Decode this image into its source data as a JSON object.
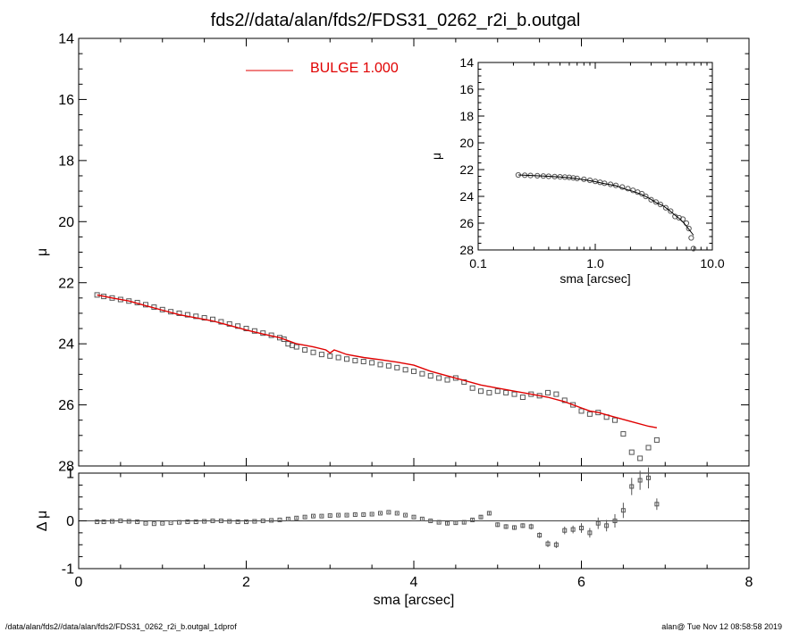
{
  "title": "fds2//data/alan/fds2/FDS31_0262_r2i_b.outgal",
  "footer": {
    "left": "/data/alan/fds2//data/alan/fds2/FDS31_0262_r2i_b.outgal_1dprof",
    "right": "alan@  Tue Nov 12 08:58:58 2019"
  },
  "chart_data": [
    {
      "type": "scatter",
      "panel": "main",
      "xlabel": "sma [arcsec]",
      "ylabel": "μ",
      "xlim": [
        0,
        8
      ],
      "ylim": [
        28,
        14
      ],
      "y_reversed": true,
      "xticks": [
        0,
        2,
        4,
        6,
        8
      ],
      "yticks": [
        14,
        16,
        18,
        20,
        22,
        24,
        26,
        28
      ],
      "legend": {
        "label": "BULGE  1.000",
        "color": "#e00000",
        "placement": "top-center"
      },
      "series": [
        {
          "kind": "points",
          "marker": "square",
          "color": "#555555",
          "x": [
            0.22,
            0.3,
            0.4,
            0.5,
            0.6,
            0.7,
            0.8,
            0.9,
            1.0,
            1.1,
            1.2,
            1.3,
            1.4,
            1.5,
            1.6,
            1.7,
            1.8,
            1.9,
            2.0,
            2.1,
            2.2,
            2.3,
            2.4,
            2.45,
            2.5,
            2.55,
            2.6,
            2.7,
            2.8,
            2.9,
            3.0,
            3.1,
            3.2,
            3.3,
            3.4,
            3.5,
            3.6,
            3.7,
            3.8,
            3.9,
            4.0,
            4.1,
            4.2,
            4.3,
            4.4,
            4.5,
            4.6,
            4.7,
            4.8,
            4.9,
            5.0,
            5.1,
            5.2,
            5.3,
            5.4,
            5.5,
            5.6,
            5.7,
            5.8,
            5.9,
            6.0,
            6.1,
            6.2,
            6.3,
            6.4,
            6.5,
            6.6,
            6.7,
            6.8,
            6.9
          ],
          "y": [
            22.4,
            22.45,
            22.5,
            22.55,
            22.6,
            22.65,
            22.72,
            22.8,
            22.88,
            22.95,
            23.0,
            23.05,
            23.1,
            23.15,
            23.2,
            23.28,
            23.35,
            23.42,
            23.5,
            23.58,
            23.65,
            23.72,
            23.8,
            23.85,
            24.0,
            24.05,
            24.1,
            24.2,
            24.28,
            24.35,
            24.4,
            24.45,
            24.5,
            24.55,
            24.58,
            24.62,
            24.68,
            24.72,
            24.78,
            24.85,
            24.9,
            24.98,
            25.05,
            25.12,
            25.18,
            25.12,
            25.25,
            25.45,
            25.55,
            25.6,
            25.55,
            25.6,
            25.65,
            25.75,
            25.65,
            25.7,
            25.6,
            25.65,
            25.85,
            26.0,
            26.2,
            26.3,
            26.25,
            26.4,
            26.5,
            26.95,
            27.55,
            27.75,
            27.4,
            27.15
          ]
        },
        {
          "kind": "line",
          "color": "#e00000",
          "x": [
            0.22,
            0.4,
            0.6,
            0.8,
            1.0,
            1.2,
            1.4,
            1.6,
            1.8,
            2.0,
            2.2,
            2.4,
            2.5,
            2.6,
            2.8,
            2.95,
            3.0,
            3.05,
            3.2,
            3.4,
            3.6,
            3.8,
            4.0,
            4.2,
            4.4,
            4.6,
            4.8,
            5.0,
            5.2,
            5.4,
            5.6,
            5.8,
            6.0,
            6.1,
            6.2,
            6.4,
            6.6,
            6.8,
            6.9
          ],
          "y": [
            22.4,
            22.5,
            22.6,
            22.75,
            22.9,
            23.05,
            23.15,
            23.25,
            23.4,
            23.55,
            23.68,
            23.8,
            23.9,
            24.0,
            24.1,
            24.2,
            24.3,
            24.2,
            24.35,
            24.45,
            24.52,
            24.6,
            24.7,
            24.9,
            25.05,
            25.2,
            25.35,
            25.45,
            25.55,
            25.65,
            25.75,
            25.9,
            26.1,
            26.2,
            26.25,
            26.4,
            26.55,
            26.7,
            26.75
          ]
        }
      ]
    },
    {
      "type": "scatter",
      "panel": "inset",
      "xlabel": "sma [arcsec]",
      "ylabel": "μ",
      "x_scale": "log",
      "xlim": [
        0.1,
        10.0
      ],
      "ylim": [
        28,
        14
      ],
      "y_reversed": true,
      "xticks": [
        0.1,
        1.0,
        10.0
      ],
      "xtick_labels": [
        "0.1",
        "1.0",
        "10.0"
      ],
      "yticks": [
        14,
        16,
        18,
        20,
        22,
        24,
        26,
        28
      ],
      "series": [
        {
          "kind": "points",
          "marker": "circle",
          "color": "#555555",
          "x": [
            0.22,
            0.25,
            0.28,
            0.32,
            0.36,
            0.4,
            0.45,
            0.5,
            0.55,
            0.6,
            0.65,
            0.7,
            0.8,
            0.9,
            1.0,
            1.1,
            1.2,
            1.35,
            1.5,
            1.7,
            1.9,
            2.1,
            2.3,
            2.5,
            2.7,
            3.0,
            3.3,
            3.6,
            4.0,
            4.4,
            4.8,
            5.2,
            5.6,
            6.0,
            6.3,
            6.6,
            6.9
          ],
          "y": [
            22.4,
            22.42,
            22.44,
            22.46,
            22.48,
            22.5,
            22.52,
            22.54,
            22.56,
            22.58,
            22.62,
            22.66,
            22.72,
            22.8,
            22.88,
            22.95,
            23.02,
            23.1,
            23.18,
            23.3,
            23.42,
            23.55,
            23.68,
            23.8,
            24.0,
            24.25,
            24.42,
            24.6,
            24.85,
            25.1,
            25.5,
            25.6,
            25.7,
            26.0,
            26.4,
            27.1,
            27.9
          ]
        },
        {
          "kind": "line",
          "color": "#000000",
          "x": [
            0.22,
            0.3,
            0.4,
            0.5,
            0.6,
            0.7,
            0.8,
            1.0,
            1.2,
            1.5,
            1.8,
            2.1,
            2.5,
            2.9,
            3.3,
            3.8,
            4.3,
            4.8,
            5.3,
            5.8,
            6.3,
            6.9
          ],
          "y": [
            22.4,
            22.45,
            22.5,
            22.55,
            22.6,
            22.68,
            22.75,
            22.9,
            23.05,
            23.2,
            23.45,
            23.62,
            23.85,
            24.15,
            24.45,
            24.7,
            25.05,
            25.4,
            25.7,
            26.05,
            26.45,
            26.9
          ]
        }
      ]
    },
    {
      "type": "scatter",
      "panel": "residual",
      "xlabel": "sma [arcsec]",
      "ylabel": "Δ μ",
      "xlim": [
        0,
        8
      ],
      "ylim": [
        -1,
        1
      ],
      "xticks": [
        0,
        2,
        4,
        6,
        8
      ],
      "xtick_labels": [
        "0",
        "2",
        "4",
        "6",
        "8"
      ],
      "yticks": [
        -1,
        0,
        1
      ],
      "zero_line": true,
      "series": [
        {
          "kind": "points",
          "marker": "square",
          "color": "#555555",
          "x": [
            0.22,
            0.3,
            0.4,
            0.5,
            0.6,
            0.7,
            0.8,
            0.9,
            1.0,
            1.1,
            1.2,
            1.3,
            1.4,
            1.5,
            1.6,
            1.7,
            1.8,
            1.9,
            2.0,
            2.1,
            2.2,
            2.3,
            2.4,
            2.5,
            2.6,
            2.7,
            2.8,
            2.9,
            3.0,
            3.1,
            3.2,
            3.3,
            3.4,
            3.5,
            3.6,
            3.7,
            3.8,
            3.9,
            4.0,
            4.1,
            4.2,
            4.3,
            4.4,
            4.5,
            4.6,
            4.7,
            4.8,
            4.9,
            5.0,
            5.1,
            5.2,
            5.3,
            5.4,
            5.5,
            5.6,
            5.7,
            5.8,
            5.9,
            6.0,
            6.1,
            6.2,
            6.3,
            6.4,
            6.5,
            6.6,
            6.7,
            6.8,
            6.9
          ],
          "y": [
            -0.02,
            -0.02,
            -0.01,
            0.0,
            -0.01,
            -0.02,
            -0.05,
            -0.06,
            -0.05,
            -0.04,
            -0.03,
            -0.02,
            -0.02,
            -0.01,
            0.0,
            0.0,
            -0.01,
            -0.02,
            -0.02,
            -0.01,
            0.0,
            0.01,
            0.02,
            0.04,
            0.06,
            0.08,
            0.1,
            0.1,
            0.11,
            0.12,
            0.12,
            0.13,
            0.13,
            0.14,
            0.16,
            0.18,
            0.16,
            0.12,
            0.08,
            0.04,
            0.0,
            -0.03,
            -0.05,
            -0.04,
            -0.03,
            0.02,
            0.08,
            0.16,
            -0.08,
            -0.12,
            -0.14,
            -0.1,
            -0.12,
            -0.3,
            -0.48,
            -0.5,
            -0.2,
            -0.18,
            -0.15,
            -0.25,
            -0.05,
            -0.1,
            0.0,
            0.22,
            0.72,
            0.85,
            0.9,
            0.35
          ],
          "errors": [
            0.01,
            0.01,
            0.01,
            0.01,
            0.01,
            0.01,
            0.01,
            0.01,
            0.01,
            0.01,
            0.01,
            0.01,
            0.01,
            0.01,
            0.01,
            0.01,
            0.01,
            0.01,
            0.01,
            0.01,
            0.01,
            0.01,
            0.01,
            0.02,
            0.02,
            0.02,
            0.02,
            0.02,
            0.02,
            0.02,
            0.02,
            0.02,
            0.02,
            0.02,
            0.02,
            0.02,
            0.02,
            0.02,
            0.02,
            0.02,
            0.02,
            0.02,
            0.03,
            0.03,
            0.03,
            0.03,
            0.04,
            0.04,
            0.05,
            0.05,
            0.05,
            0.05,
            0.06,
            0.06,
            0.07,
            0.07,
            0.08,
            0.08,
            0.1,
            0.1,
            0.12,
            0.12,
            0.14,
            0.16,
            0.18,
            0.2,
            0.22,
            0.12
          ]
        }
      ]
    }
  ]
}
